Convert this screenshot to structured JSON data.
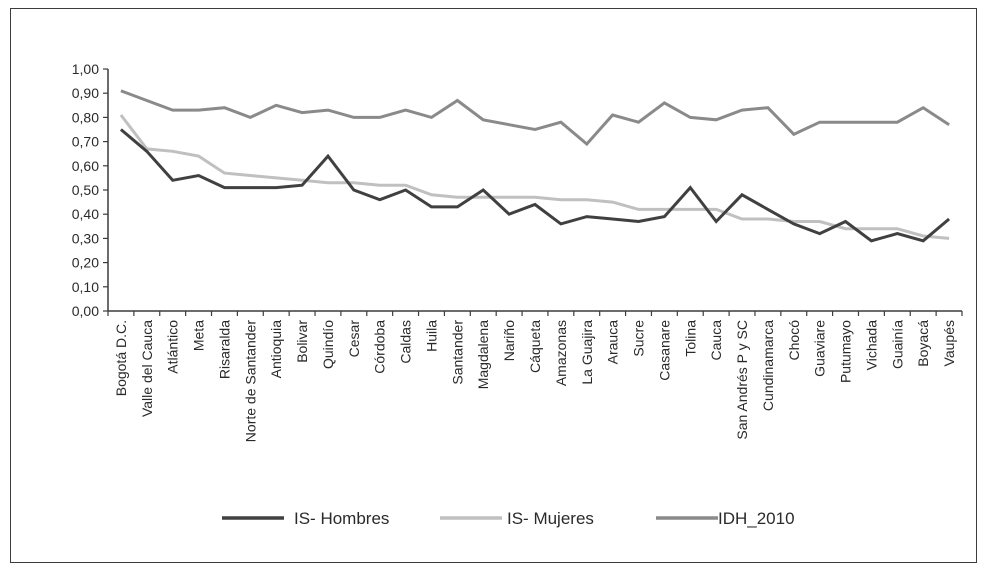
{
  "chart_data": {
    "type": "line",
    "title": "",
    "xlabel": "",
    "ylabel": "",
    "ylim": [
      0,
      1
    ],
    "y_ticks": [
      "0,00",
      "0,10",
      "0,20",
      "0,30",
      "0,40",
      "0,50",
      "0,60",
      "0,70",
      "0,80",
      "0,90",
      "1,00"
    ],
    "grid": false,
    "legend_position": "bottom",
    "categories": [
      "Bogotá D.C.",
      "Valle del Cauca",
      "Atlántico",
      "Meta",
      "Risaralda",
      "Norte de Santander",
      "Antioquia",
      "Bolivar",
      "Quindío",
      "Cesar",
      "Córdoba",
      "Caldas",
      "Huila",
      "Santander",
      "Magdalena",
      "Nariño",
      "Cáqueta",
      "Amazonas",
      "La Guajira",
      "Arauca",
      "Sucre",
      "Casanare",
      "Tolina",
      "Cauca",
      "San Andrés P y SC",
      "Cundinamarca",
      "Chocó",
      "Guaviare",
      "Putumayo",
      "Vichada",
      "Guainía",
      "Boyacá",
      "Vaupés"
    ],
    "series": [
      {
        "name": "IS- Hombres",
        "color": "#404040",
        "values": [
          0.75,
          0.66,
          0.54,
          0.56,
          0.51,
          0.51,
          0.51,
          0.52,
          0.64,
          0.5,
          0.46,
          0.5,
          0.43,
          0.43,
          0.5,
          0.4,
          0.44,
          0.36,
          0.39,
          0.38,
          0.37,
          0.39,
          0.51,
          0.37,
          0.48,
          0.42,
          0.36,
          0.32,
          0.37,
          0.29,
          0.32,
          0.29,
          0.38
        ]
      },
      {
        "name": "IS- Mujeres",
        "color": "#c0c0c0",
        "values": [
          0.81,
          0.67,
          0.66,
          0.64,
          0.57,
          0.56,
          0.55,
          0.54,
          0.53,
          0.53,
          0.52,
          0.52,
          0.48,
          0.47,
          0.47,
          0.47,
          0.47,
          0.46,
          0.46,
          0.45,
          0.42,
          0.42,
          0.42,
          0.42,
          0.38,
          0.38,
          0.37,
          0.37,
          0.34,
          0.34,
          0.34,
          0.31,
          0.3
        ]
      },
      {
        "name": "IDH_2010",
        "color": "#8a8a8a",
        "values": [
          0.91,
          0.87,
          0.83,
          0.83,
          0.84,
          0.8,
          0.85,
          0.82,
          0.83,
          0.8,
          0.8,
          0.83,
          0.8,
          0.87,
          0.79,
          0.77,
          0.75,
          0.78,
          0.69,
          0.81,
          0.78,
          0.86,
          0.8,
          0.79,
          0.83,
          0.84,
          0.73,
          0.78,
          0.78,
          0.78,
          0.78,
          0.84,
          0.77
        ]
      }
    ]
  }
}
